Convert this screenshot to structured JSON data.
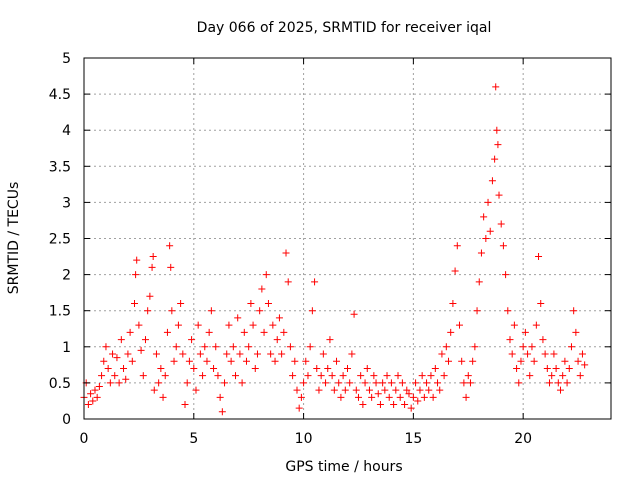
{
  "chart_data": {
    "type": "scatter",
    "title": "Day 066 of 2025, SRMTID for receiver iqal",
    "xlabel": "GPS time / hours",
    "ylabel": "SRMTID / TECUs",
    "xlim": [
      0,
      24
    ],
    "ylim": [
      0,
      5
    ],
    "xticks": [
      0,
      5,
      10,
      15,
      20
    ],
    "yticks": [
      0,
      0.5,
      1,
      1.5,
      2,
      2.5,
      3,
      3.5,
      4,
      4.5,
      5
    ],
    "ytick_labels": [
      "0",
      "0.5",
      "1",
      "1.5",
      "2",
      "2.5",
      "3",
      "3.5",
      "4",
      "4.5",
      "5"
    ],
    "xtick_labels": [
      "0",
      "5",
      "10",
      "15",
      "20"
    ],
    "grid": true,
    "marker": "+",
    "color": "#ff0000",
    "series": [
      {
        "name": "SRMTID",
        "points": [
          [
            0.0,
            0.3
          ],
          [
            0.1,
            0.5
          ],
          [
            0.2,
            0.2
          ],
          [
            0.3,
            0.35
          ],
          [
            0.4,
            0.25
          ],
          [
            0.5,
            0.4
          ],
          [
            0.6,
            0.3
          ],
          [
            0.7,
            0.45
          ],
          [
            0.8,
            0.6
          ],
          [
            0.9,
            0.8
          ],
          [
            1.0,
            1.0
          ],
          [
            1.1,
            0.7
          ],
          [
            1.2,
            0.5
          ],
          [
            1.3,
            0.9
          ],
          [
            1.4,
            0.6
          ],
          [
            1.5,
            0.85
          ],
          [
            1.6,
            0.5
          ],
          [
            1.7,
            1.1
          ],
          [
            1.8,
            0.7
          ],
          [
            1.9,
            0.55
          ],
          [
            2.0,
            0.9
          ],
          [
            2.1,
            1.2
          ],
          [
            2.2,
            0.8
          ],
          [
            2.3,
            1.6
          ],
          [
            2.35,
            2.0
          ],
          [
            2.4,
            2.2
          ],
          [
            2.5,
            1.3
          ],
          [
            2.6,
            0.95
          ],
          [
            2.7,
            0.6
          ],
          [
            2.8,
            1.1
          ],
          [
            2.9,
            1.5
          ],
          [
            3.0,
            1.7
          ],
          [
            3.1,
            2.1
          ],
          [
            3.15,
            2.25
          ],
          [
            3.2,
            0.4
          ],
          [
            3.3,
            0.9
          ],
          [
            3.4,
            0.5
          ],
          [
            3.5,
            0.7
          ],
          [
            3.6,
            0.3
          ],
          [
            3.7,
            0.6
          ],
          [
            3.8,
            1.2
          ],
          [
            3.9,
            2.4
          ],
          [
            3.95,
            2.1
          ],
          [
            4.0,
            1.5
          ],
          [
            4.1,
            0.8
          ],
          [
            4.2,
            1.0
          ],
          [
            4.3,
            1.3
          ],
          [
            4.4,
            1.6
          ],
          [
            4.5,
            0.9
          ],
          [
            4.6,
            0.2
          ],
          [
            4.7,
            0.5
          ],
          [
            4.8,
            0.8
          ],
          [
            4.9,
            1.1
          ],
          [
            5.0,
            0.7
          ],
          [
            5.1,
            0.4
          ],
          [
            5.2,
            1.3
          ],
          [
            5.3,
            0.9
          ],
          [
            5.4,
            0.6
          ],
          [
            5.5,
            1.0
          ],
          [
            5.6,
            0.8
          ],
          [
            5.7,
            1.2
          ],
          [
            5.8,
            1.5
          ],
          [
            5.9,
            0.7
          ],
          [
            6.0,
            1.0
          ],
          [
            6.1,
            0.6
          ],
          [
            6.2,
            0.3
          ],
          [
            6.3,
            0.1
          ],
          [
            6.4,
            0.5
          ],
          [
            6.5,
            0.9
          ],
          [
            6.6,
            1.3
          ],
          [
            6.7,
            0.8
          ],
          [
            6.8,
            1.0
          ],
          [
            6.9,
            0.6
          ],
          [
            7.0,
            1.4
          ],
          [
            7.1,
            0.9
          ],
          [
            7.2,
            0.5
          ],
          [
            7.3,
            1.2
          ],
          [
            7.4,
            0.8
          ],
          [
            7.5,
            1.0
          ],
          [
            7.6,
            1.6
          ],
          [
            7.7,
            1.3
          ],
          [
            7.8,
            0.7
          ],
          [
            7.9,
            0.9
          ],
          [
            8.0,
            1.5
          ],
          [
            8.1,
            1.8
          ],
          [
            8.2,
            1.2
          ],
          [
            8.3,
            2.0
          ],
          [
            8.4,
            1.6
          ],
          [
            8.5,
            0.9
          ],
          [
            8.6,
            1.3
          ],
          [
            8.7,
            0.8
          ],
          [
            8.8,
            1.1
          ],
          [
            8.9,
            1.4
          ],
          [
            9.0,
            0.9
          ],
          [
            9.1,
            1.2
          ],
          [
            9.2,
            2.3
          ],
          [
            9.3,
            1.9
          ],
          [
            9.4,
            1.0
          ],
          [
            9.5,
            0.6
          ],
          [
            9.6,
            0.8
          ],
          [
            9.7,
            0.4
          ],
          [
            9.8,
            0.15
          ],
          [
            9.9,
            0.3
          ],
          [
            10.0,
            0.5
          ],
          [
            10.1,
            0.8
          ],
          [
            10.2,
            0.6
          ],
          [
            10.3,
            1.0
          ],
          [
            10.4,
            1.5
          ],
          [
            10.5,
            1.9
          ],
          [
            10.6,
            0.7
          ],
          [
            10.7,
            0.4
          ],
          [
            10.8,
            0.6
          ],
          [
            10.9,
            0.9
          ],
          [
            11.0,
            0.5
          ],
          [
            11.1,
            0.7
          ],
          [
            11.2,
            1.1
          ],
          [
            11.3,
            0.6
          ],
          [
            11.4,
            0.4
          ],
          [
            11.5,
            0.8
          ],
          [
            11.6,
            0.5
          ],
          [
            11.7,
            0.3
          ],
          [
            11.8,
            0.6
          ],
          [
            11.9,
            0.4
          ],
          [
            12.0,
            0.7
          ],
          [
            12.1,
            0.5
          ],
          [
            12.2,
            0.9
          ],
          [
            12.3,
            1.45
          ],
          [
            12.4,
            0.4
          ],
          [
            12.5,
            0.3
          ],
          [
            12.6,
            0.6
          ],
          [
            12.7,
            0.2
          ],
          [
            12.8,
            0.5
          ],
          [
            12.9,
            0.7
          ],
          [
            13.0,
            0.4
          ],
          [
            13.1,
            0.3
          ],
          [
            13.2,
            0.6
          ],
          [
            13.3,
            0.5
          ],
          [
            13.4,
            0.35
          ],
          [
            13.5,
            0.2
          ],
          [
            13.6,
            0.5
          ],
          [
            13.7,
            0.4
          ],
          [
            13.8,
            0.6
          ],
          [
            13.9,
            0.3
          ],
          [
            14.0,
            0.5
          ],
          [
            14.1,
            0.2
          ],
          [
            14.2,
            0.4
          ],
          [
            14.3,
            0.6
          ],
          [
            14.4,
            0.3
          ],
          [
            14.5,
            0.5
          ],
          [
            14.6,
            0.2
          ],
          [
            14.7,
            0.4
          ],
          [
            14.8,
            0.35
          ],
          [
            14.9,
            0.15
          ],
          [
            15.0,
            0.3
          ],
          [
            15.1,
            0.5
          ],
          [
            15.2,
            0.25
          ],
          [
            15.3,
            0.4
          ],
          [
            15.4,
            0.6
          ],
          [
            15.5,
            0.3
          ],
          [
            15.6,
            0.5
          ],
          [
            15.7,
            0.4
          ],
          [
            15.8,
            0.6
          ],
          [
            15.9,
            0.3
          ],
          [
            16.0,
            0.7
          ],
          [
            16.1,
            0.5
          ],
          [
            16.2,
            0.4
          ],
          [
            16.3,
            0.9
          ],
          [
            16.4,
            0.6
          ],
          [
            16.5,
            1.0
          ],
          [
            16.6,
            0.8
          ],
          [
            16.7,
            1.2
          ],
          [
            16.8,
            1.6
          ],
          [
            16.9,
            2.05
          ],
          [
            17.0,
            2.4
          ],
          [
            17.1,
            1.3
          ],
          [
            17.2,
            0.8
          ],
          [
            17.3,
            0.5
          ],
          [
            17.4,
            0.3
          ],
          [
            17.5,
            0.6
          ],
          [
            17.6,
            0.5
          ],
          [
            17.7,
            0.8
          ],
          [
            17.8,
            1.0
          ],
          [
            17.9,
            1.5
          ],
          [
            18.0,
            1.9
          ],
          [
            18.1,
            2.3
          ],
          [
            18.2,
            2.8
          ],
          [
            18.3,
            2.5
          ],
          [
            18.4,
            3.0
          ],
          [
            18.5,
            2.6
          ],
          [
            18.6,
            3.3
          ],
          [
            18.7,
            3.6
          ],
          [
            18.75,
            4.6
          ],
          [
            18.8,
            4.0
          ],
          [
            18.85,
            3.8
          ],
          [
            18.9,
            3.1
          ],
          [
            19.0,
            2.7
          ],
          [
            19.1,
            2.4
          ],
          [
            19.2,
            2.0
          ],
          [
            19.3,
            1.5
          ],
          [
            19.4,
            1.1
          ],
          [
            19.5,
            0.9
          ],
          [
            19.6,
            1.3
          ],
          [
            19.7,
            0.7
          ],
          [
            19.8,
            0.5
          ],
          [
            19.9,
            0.8
          ],
          [
            20.0,
            1.0
          ],
          [
            20.1,
            1.2
          ],
          [
            20.2,
            0.9
          ],
          [
            20.3,
            0.6
          ],
          [
            20.4,
            1.0
          ],
          [
            20.5,
            0.8
          ],
          [
            20.6,
            1.3
          ],
          [
            20.7,
            2.25
          ],
          [
            20.8,
            1.6
          ],
          [
            20.9,
            1.1
          ],
          [
            21.0,
            0.9
          ],
          [
            21.1,
            0.7
          ],
          [
            21.2,
            0.5
          ],
          [
            21.3,
            0.6
          ],
          [
            21.4,
            0.9
          ],
          [
            21.5,
            0.7
          ],
          [
            21.6,
            0.5
          ],
          [
            21.7,
            0.4
          ],
          [
            21.8,
            0.6
          ],
          [
            21.9,
            0.8
          ],
          [
            22.0,
            0.5
          ],
          [
            22.1,
            0.7
          ],
          [
            22.2,
            1.0
          ],
          [
            22.3,
            1.5
          ],
          [
            22.4,
            1.2
          ],
          [
            22.5,
            0.8
          ],
          [
            22.6,
            0.6
          ],
          [
            22.7,
            0.9
          ],
          [
            22.8,
            0.75
          ]
        ]
      }
    ]
  }
}
